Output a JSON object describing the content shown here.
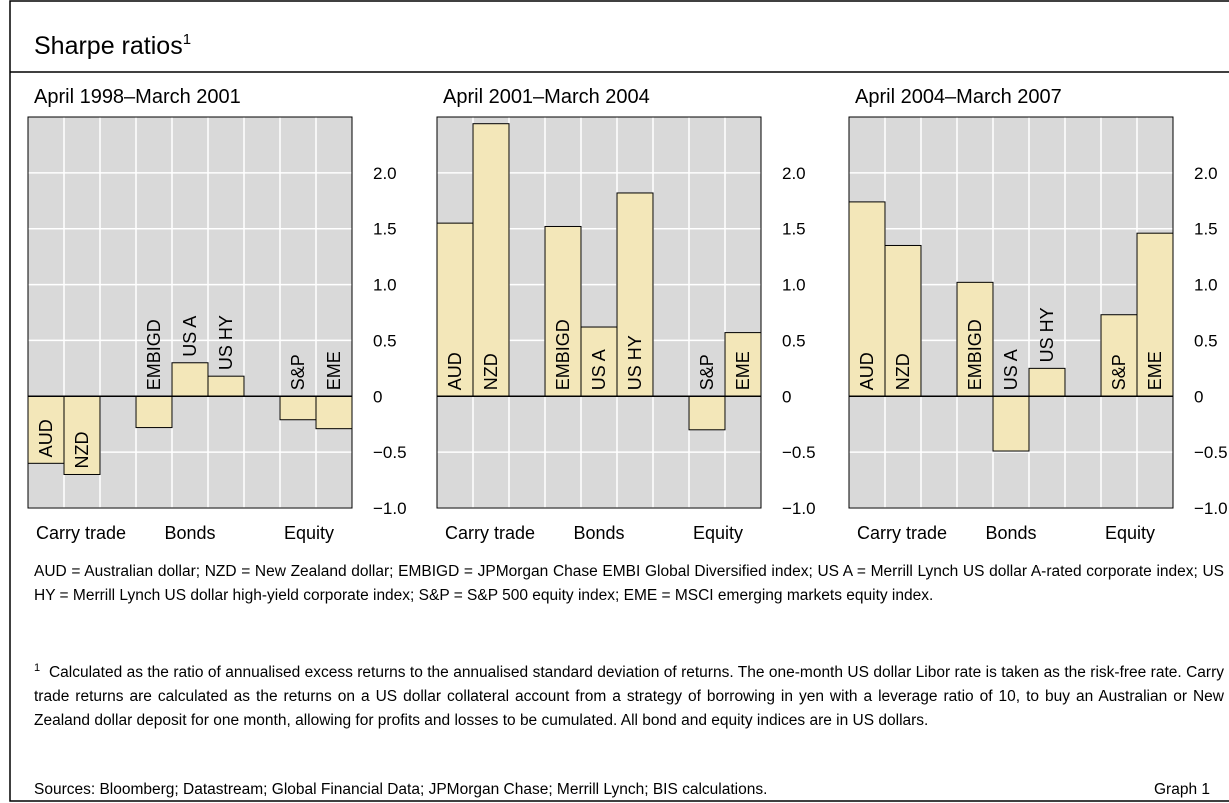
{
  "title": "Sharpe ratios",
  "title_note": "1",
  "chart_data": [
    {
      "type": "bar",
      "subtitle": "April 1998–March 2001",
      "categories": [
        "AUD",
        "NZD",
        null,
        "EMBIGD",
        "US A",
        "US HY",
        null,
        "S&P",
        "EME"
      ],
      "values": [
        -0.6,
        -0.7,
        null,
        -0.28,
        0.3,
        0.18,
        null,
        -0.21,
        -0.29
      ],
      "groups": [
        "Carry trade",
        "Bonds",
        "Equity"
      ],
      "color": "#f3e7b9",
      "ylim": [
        -1.0,
        2.5
      ],
      "yticks": [
        {
          "value": -1.0,
          "label": "−1.0"
        },
        {
          "value": -0.5,
          "label": "−0.5"
        },
        0,
        0.5,
        {
          "value": 1.0,
          "label": "1.0"
        },
        1.5,
        {
          "value": 2.0,
          "label": "2.0"
        }
      ],
      "grid": true
    },
    {
      "type": "bar",
      "subtitle": "April 2001–March 2004",
      "categories": [
        "AUD",
        "NZD",
        null,
        "EMBIGD",
        "US A",
        "US HY",
        null,
        "S&P",
        "EME"
      ],
      "values": [
        1.55,
        2.44,
        null,
        1.52,
        0.62,
        1.82,
        null,
        -0.3,
        0.57
      ],
      "groups": [
        "Carry trade",
        "Bonds",
        "Equity"
      ],
      "color": "#f3e7b9",
      "ylim": [
        -1.0,
        2.5
      ],
      "yticks": [
        {
          "value": -1.0,
          "label": "−1.0"
        },
        {
          "value": -0.5,
          "label": "−0.5"
        },
        0,
        0.5,
        {
          "value": 1.0,
          "label": "1.0"
        },
        1.5,
        {
          "value": 2.0,
          "label": "2.0"
        }
      ],
      "grid": true
    },
    {
      "type": "bar",
      "subtitle": "April 2004–March 2007",
      "categories": [
        "AUD",
        "NZD",
        null,
        "EMBIGD",
        "US A",
        "US HY",
        null,
        "S&P",
        "EME"
      ],
      "values": [
        1.74,
        1.35,
        null,
        1.02,
        -0.49,
        0.25,
        null,
        0.73,
        1.46
      ],
      "groups": [
        "Carry trade",
        "Bonds",
        "Equity"
      ],
      "color": "#f3e7b9",
      "ylim": [
        -1.0,
        2.5
      ],
      "yticks": [
        {
          "value": -1.0,
          "label": "−1.0"
        },
        {
          "value": -0.5,
          "label": "−0.5"
        },
        0,
        0.5,
        {
          "value": 1.0,
          "label": "1.0"
        },
        1.5,
        {
          "value": 2.0,
          "label": "2.0"
        }
      ],
      "grid": true
    }
  ],
  "notes": "AUD = Australian dollar; NZD = New Zealand dollar; EMBIGD = JPMorgan Chase EMBI Global Diversified index; US A = Merrill Lynch US dollar A-rated corporate index; US HY = Merrill Lynch US dollar high-yield corporate index; S&P = S&P 500 equity index; EME = MSCI emerging markets equity index.",
  "footnote_mark": "1",
  "footnote": "Calculated as the ratio of annualised excess returns to the annualised standard deviation of returns. The one-month US dollar Libor rate is taken as the risk-free rate. Carry trade returns are calculated as the returns on a US dollar collateral account from a strategy of borrowing in yen with a leverage ratio of 10, to buy an Australian or New Zealand dollar deposit for one month, allowing for profits and losses to be cumulated. All bond and equity indices are in US dollars.",
  "sources": "Sources: Bloomberg; Datastream; Global Financial Data; JPMorgan Chase; Merrill Lynch; BIS calculations.",
  "graph_label": "Graph 1"
}
